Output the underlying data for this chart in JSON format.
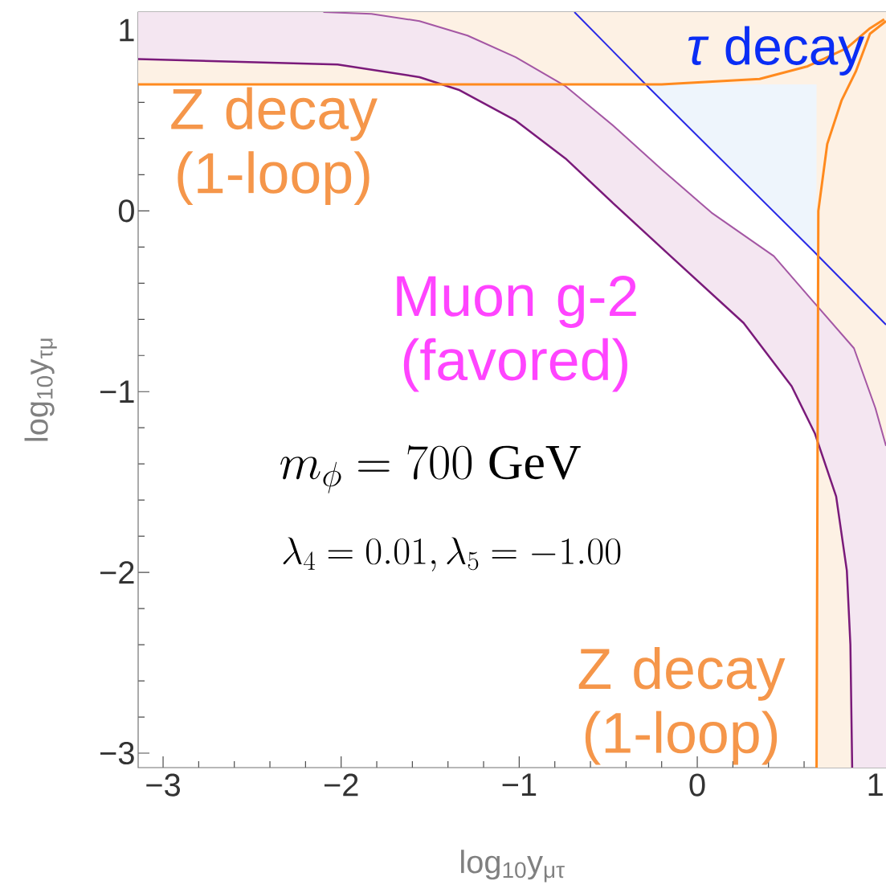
{
  "chart_data": {
    "type": "line",
    "xlabel": "log$_{10}$y$_{μτ}$",
    "ylabel": "log$_{10}$y$_{τμ}$",
    "xlim": [
      -3.14,
      1.06
    ],
    "ylim": [
      -3.08,
      1.1
    ],
    "xticks": [
      {
        "value": -3,
        "label": "−3"
      },
      {
        "value": -2,
        "label": "−2"
      },
      {
        "value": -1,
        "label": "−1"
      },
      0,
      1
    ],
    "yticks": [
      {
        "value": -3,
        "label": "−3"
      },
      {
        "value": -2,
        "label": "−2"
      },
      {
        "value": -1,
        "label": "−1"
      },
      0,
      1
    ],
    "grid": false,
    "marker": "none",
    "line_style": "solid",
    "series": [
      {
        "color": "#7a1a7a",
        "x": [
          -3.14,
          -2.02,
          -1.56,
          -1.34,
          -1.02,
          -0.74,
          -0.47,
          -0.15,
          0.26,
          0.53,
          0.66,
          0.78,
          0.84,
          0.86,
          0.87
        ],
        "values": [
          0.84,
          0.81,
          0.74,
          0.67,
          0.5,
          0.29,
          0.04,
          -0.25,
          -0.62,
          -0.97,
          -1.23,
          -1.58,
          -1.99,
          -2.4,
          -3.08
        ]
      },
      {
        "color": "#a457a4",
        "x": [
          -2.1,
          -1.83,
          -1.56,
          -1.29,
          -1.02,
          -0.74,
          -0.47,
          -0.2,
          0.08,
          0.43,
          0.65,
          0.88,
          1.0,
          1.06
        ],
        "values": [
          1.1,
          1.09,
          1.05,
          0.97,
          0.85,
          0.69,
          0.47,
          0.23,
          -0.01,
          -0.25,
          -0.5,
          -0.76,
          -1.09,
          -1.3
        ]
      },
      {
        "color": "#2a2ae6",
        "x": [
          -0.69,
          -0.28,
          0.65,
          1.06
        ],
        "values": [
          1.1,
          0.69,
          -0.22,
          -0.63
        ]
      },
      {
        "color": "#ff8a1e",
        "x": [
          -3.14,
          -0.2,
          0.35,
          0.62,
          0.84,
          0.97,
          1.05
        ],
        "values": [
          0.7,
          0.7,
          0.73,
          0.8,
          0.9,
          1.01,
          1.06
        ]
      },
      {
        "color": "#ff8a1e",
        "x": [
          0.67,
          0.68,
          0.73,
          0.81,
          0.89,
          0.97,
          1.06
        ],
        "values": [
          -3.08,
          0.0,
          0.37,
          0.61,
          0.77,
          0.98,
          1.05
        ]
      }
    ],
    "bands": [
      {
        "axis": "y",
        "from": 0.7,
        "to": 1.1,
        "label": "Z decay (1-loop)",
        "color": "#fdf1e4"
      },
      {
        "axis": "x",
        "from": 0.67,
        "to": 1.06,
        "label": "Z decay (1-loop)",
        "color": "#fdf1e4"
      }
    ],
    "annotations": [
      "*τ* decay",
      "Muon g-2 (favored)",
      "m_\\phi = 700\\ \\mathrm{GeV}",
      "\\lambda_4 = 0.01, \\lambda_5 = -1.00"
    ]
  }
}
